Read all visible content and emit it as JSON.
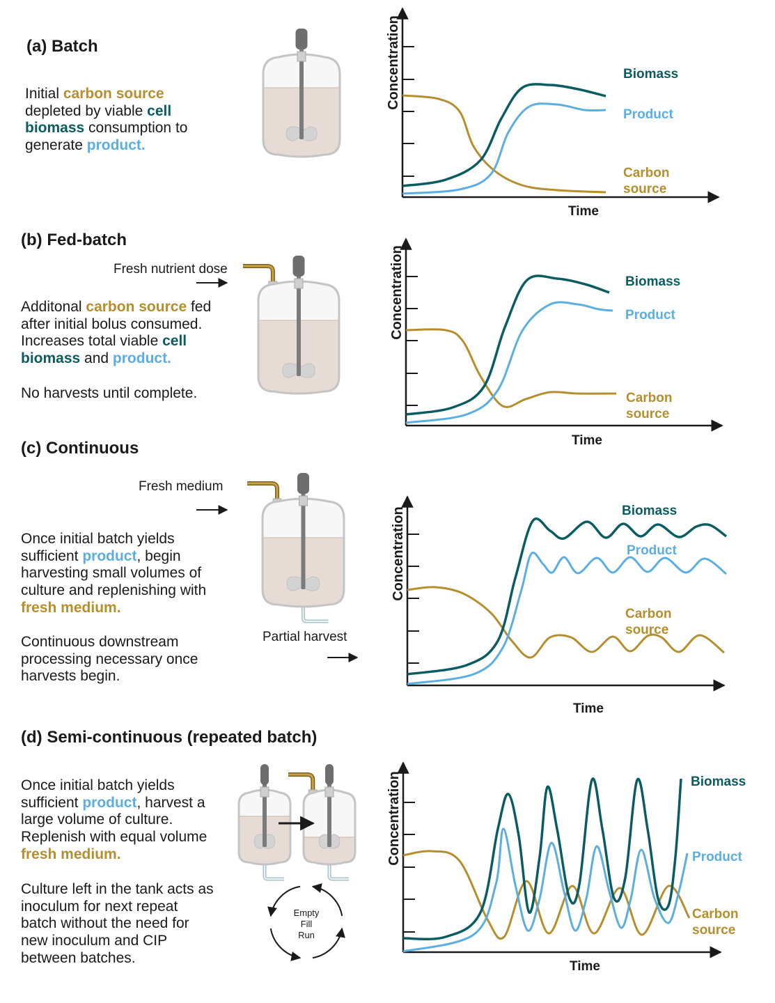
{
  "colors": {
    "carbon_source": "#B58F2E",
    "biomass": "#0B5C62",
    "product": "#5BAEE2",
    "text": "#1a1a1a",
    "liquid": "#E6DCD5"
  },
  "panels": [
    {
      "title": "(a) Batch",
      "paragraph": [
        [
          [
            "Initial ",
            ""
          ],
          [
            "carbon source",
            "c"
          ]
        ],
        [
          [
            "depleted by viable ",
            ""
          ],
          [
            "cell",
            "b"
          ]
        ],
        [
          [
            "biomass",
            "b"
          ],
          [
            " consumption to",
            ""
          ]
        ],
        [
          [
            "generate ",
            ""
          ],
          [
            "product.",
            "p"
          ]
        ]
      ],
      "chart": {
        "ylabel": "Concentration",
        "xlabel": "Time",
        "series": [
          "Biomass",
          "Product",
          "Carbon",
          "source"
        ]
      }
    },
    {
      "title": "(b) Fed-batch",
      "feed_label": "Fresh nutrient dose",
      "paragraph": [
        [
          [
            "Additonal ",
            ""
          ],
          [
            "carbon source",
            "c"
          ],
          [
            " fed",
            ""
          ]
        ],
        [
          [
            "after initial bolus consumed.",
            ""
          ]
        ],
        [
          [
            "Increases total viable ",
            ""
          ],
          [
            "cell",
            "b"
          ]
        ],
        [
          [
            "biomass",
            "b"
          ],
          [
            " and ",
            ""
          ],
          [
            "product.",
            "p"
          ]
        ]
      ],
      "note": "No harvests until complete.",
      "chart": {
        "ylabel": "Concentration",
        "xlabel": "Time",
        "series": [
          "Biomass",
          "Product",
          "Carbon",
          "source"
        ]
      }
    },
    {
      "title": "(c) Continuous",
      "feed_label": "Fresh medium",
      "harvest_label": "Partial harvest",
      "paragraph": [
        [
          [
            "Once initial batch yields",
            ""
          ]
        ],
        [
          [
            "sufficient ",
            ""
          ],
          [
            "product",
            "p"
          ],
          [
            ", begin",
            ""
          ]
        ],
        [
          [
            "harvesting small volumes of",
            ""
          ]
        ],
        [
          [
            "culture and replenishing with",
            ""
          ]
        ],
        [
          [
            "fresh medium.",
            "c"
          ]
        ]
      ],
      "paragraph2": [
        [
          [
            "Continuous downstream",
            ""
          ]
        ],
        [
          [
            "processing necessary once",
            ""
          ]
        ],
        [
          [
            "harvests begin.",
            ""
          ]
        ]
      ],
      "chart": {
        "ylabel": "Concentration",
        "xlabel": "Time",
        "series": [
          "Biomass",
          "Product",
          "Carbon",
          "source"
        ]
      }
    },
    {
      "title": "(d) Semi-continuous (repeated batch)",
      "paragraph": [
        [
          [
            "Once initial batch yields",
            ""
          ]
        ],
        [
          [
            "sufficient ",
            ""
          ],
          [
            "product",
            "p"
          ],
          [
            ", harvest a",
            ""
          ]
        ],
        [
          [
            "large volume of culture.",
            ""
          ]
        ],
        [
          [
            "Replenish with equal volume",
            ""
          ]
        ],
        [
          [
            "fresh medium.",
            "c"
          ]
        ]
      ],
      "paragraph2": [
        [
          [
            "Culture left in the tank acts as",
            ""
          ]
        ],
        [
          [
            "inoculum for next repeat",
            ""
          ]
        ],
        [
          [
            "batch without the need for",
            ""
          ]
        ],
        [
          [
            "new inoculum and CIP",
            ""
          ]
        ],
        [
          [
            "between batches.",
            ""
          ]
        ]
      ],
      "cycle": [
        "Empty",
        "Fill",
        "Run"
      ],
      "chart": {
        "ylabel": "Concentration",
        "xlabel": "Time",
        "series": [
          "Biomass",
          "Product",
          "Carbon",
          "source"
        ]
      }
    }
  ]
}
